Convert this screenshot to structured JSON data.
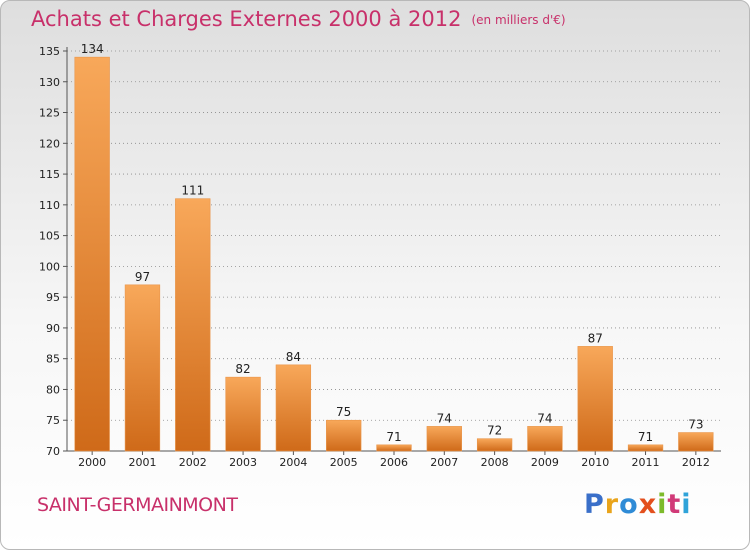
{
  "header": {
    "title": "Achats et Charges Externes 2000 à 2012",
    "unit": "(en milliers d'€)"
  },
  "footer": {
    "commune": "SAINT-GERMAINMONT",
    "logo_text": "Proxiti"
  },
  "colors": {
    "title": "#c8306a",
    "bar_light": "#f8a85a",
    "bar_dark": "#cf6a19",
    "grid": "#8a8a8a"
  },
  "chart_data": {
    "type": "bar",
    "title": "Achats et Charges Externes 2000 à 2012",
    "subtitle": "(en milliers d'€)",
    "xlabel": "",
    "ylabel": "",
    "categories": [
      "2000",
      "2001",
      "2002",
      "2003",
      "2004",
      "2005",
      "2006",
      "2007",
      "2008",
      "2009",
      "2010",
      "2011",
      "2012"
    ],
    "values": [
      134,
      97,
      111,
      82,
      84,
      75,
      71,
      74,
      72,
      74,
      87,
      71,
      73
    ],
    "ylim": [
      70,
      135
    ],
    "yticks": [
      70,
      75,
      80,
      85,
      90,
      95,
      100,
      105,
      110,
      115,
      120,
      125,
      130,
      135
    ],
    "grid": true,
    "grid_axis": "y",
    "grid_style": "dotted",
    "legend": "none"
  }
}
